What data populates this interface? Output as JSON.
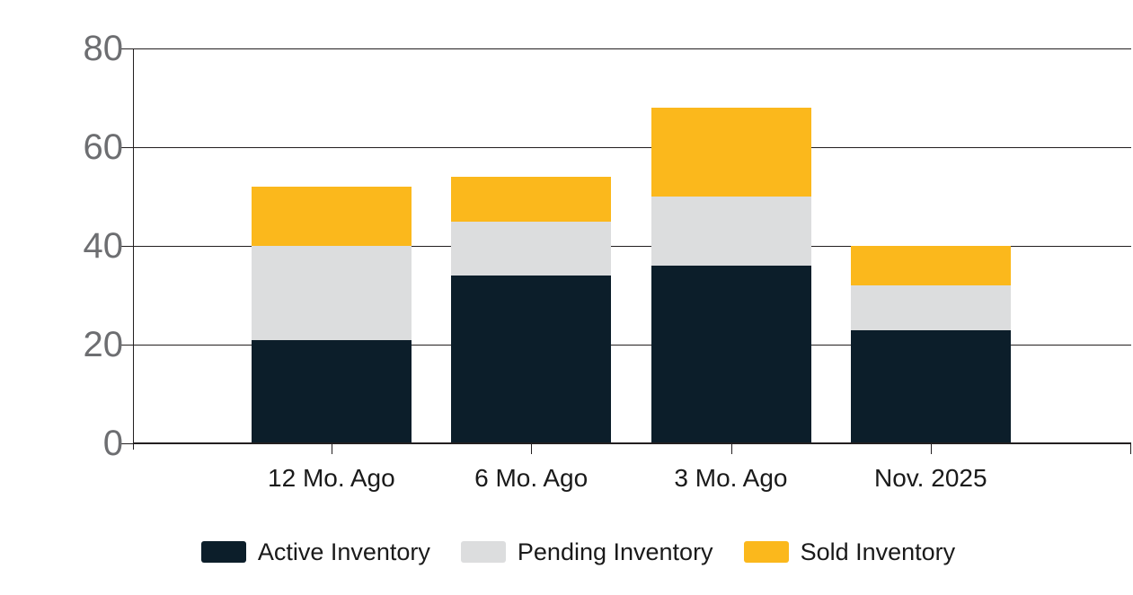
{
  "chart_data": {
    "type": "bar",
    "stacked": true,
    "title": "",
    "xlabel": "",
    "ylabel": "",
    "categories": [
      "12 Mo. Ago",
      "6 Mo. Ago",
      "3 Mo. Ago",
      "Nov. 2025"
    ],
    "series": [
      {
        "name": "Active Inventory",
        "color": "#0c1e2a",
        "values": [
          21,
          34,
          36,
          23
        ]
      },
      {
        "name": "Pending Inventory",
        "color": "#dcddde",
        "values": [
          19,
          11,
          14,
          9
        ]
      },
      {
        "name": "Sold Inventory",
        "color": "#fbb81c",
        "values": [
          12,
          9,
          18,
          8
        ]
      }
    ],
    "stack_totals": [
      52,
      54,
      68,
      40
    ],
    "ylim": [
      0,
      80
    ],
    "yticks": [
      0,
      20,
      40,
      60,
      80
    ],
    "grid": true,
    "legend_position": "bottom",
    "colors": {
      "axis": "#231f20",
      "y_tick_label": "#6d6e71",
      "x_tick_label": "#1a1a1a",
      "background": "#ffffff"
    }
  }
}
